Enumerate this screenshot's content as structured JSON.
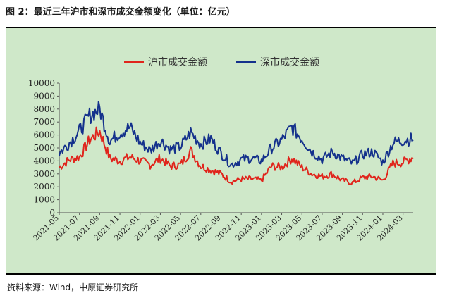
{
  "figure": {
    "title": "图 2：最近三年沪市和深市成交金额变化（单位：亿元）",
    "source": "资料来源：Wind，中原证券研究所"
  },
  "colors": {
    "background": "#cfe8c9",
    "sh": "#e0251c",
    "sz": "#14318c"
  },
  "chart_data": {
    "type": "line",
    "title": "",
    "xlabel": "",
    "ylabel": "",
    "ylim": [
      0,
      10000
    ],
    "yticks": [
      0,
      1000,
      2000,
      3000,
      4000,
      5000,
      6000,
      7000,
      8000,
      9000,
      10000
    ],
    "xticks": [
      "2021-05",
      "2021-07",
      "2021-09",
      "2021-11",
      "2022-01",
      "2022-03",
      "2022-05",
      "2022-07",
      "2022-09",
      "2022-11",
      "2023-01",
      "2023-03",
      "2023-05",
      "2023-07",
      "2023-09",
      "2023-11",
      "2024-01",
      "2024-03"
    ],
    "legend_position": "top",
    "grid": false,
    "x": [
      "2021-05",
      "2021-06",
      "2021-07",
      "2021-08",
      "2021-09",
      "2021-10",
      "2021-11",
      "2021-12",
      "2022-01",
      "2022-02",
      "2022-03",
      "2022-04",
      "2022-05",
      "2022-06",
      "2022-07",
      "2022-08",
      "2022-09",
      "2022-10",
      "2022-11",
      "2022-12",
      "2023-01",
      "2023-02",
      "2023-03",
      "2023-04",
      "2023-05",
      "2023-06",
      "2023-07",
      "2023-08",
      "2023-09",
      "2023-10",
      "2023-11",
      "2023-12",
      "2024-01",
      "2024-02",
      "2024-03",
      "2024-04"
    ],
    "series": [
      {
        "name": "沪市成交金额",
        "values": [
          3500,
          4100,
          4300,
          5600,
          6300,
          4200,
          4000,
          4300,
          4000,
          3700,
          4200,
          3600,
          3700,
          4800,
          3600,
          3300,
          3000,
          2400,
          2600,
          2600,
          2500,
          3600,
          3500,
          4200,
          3500,
          3000,
          2800,
          3000,
          2500,
          2300,
          2700,
          2800,
          2500,
          3800,
          3900,
          4300
        ]
      },
      {
        "name": "深市成交金额",
        "values": [
          4600,
          5400,
          6300,
          7500,
          8000,
          5500,
          6200,
          6600,
          5400,
          4800,
          5600,
          4900,
          5100,
          6200,
          5300,
          5700,
          4600,
          3700,
          4100,
          4200,
          4000,
          5000,
          5600,
          6600,
          5700,
          4700,
          4100,
          4700,
          4200,
          3800,
          4500,
          4700,
          3900,
          5400,
          5600,
          5700
        ]
      }
    ]
  }
}
